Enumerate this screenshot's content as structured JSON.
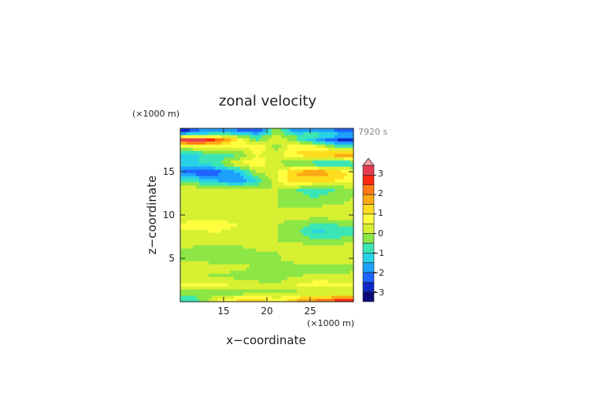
{
  "chart_data": {
    "type": "heatmap",
    "title": "zonal velocity",
    "xlabel": "x−coordinate",
    "ylabel": "z−coordinate",
    "x_unit": "(×1000 m)",
    "y_unit": "(×1000 m)",
    "time_label": "7920 s",
    "xlim": [
      10,
      30
    ],
    "ylim": [
      0,
      20
    ],
    "x_ticks": [
      "15",
      "20",
      "25"
    ],
    "y_ticks": [
      "5",
      "10",
      "15"
    ],
    "colorbar": {
      "range": [
        -3.5,
        3.5
      ],
      "ticks": [
        "3",
        "2",
        "1",
        "0",
        "−1",
        "−2",
        "−3"
      ],
      "levels": [
        -3.5,
        -3.0,
        -2.5,
        -2.0,
        -1.5,
        -1.0,
        -0.5,
        0,
        0.5,
        1.0,
        1.5,
        2.0,
        2.5,
        3.0,
        3.5
      ],
      "colors": [
        "#0a0a78",
        "#1028c8",
        "#1e64ff",
        "#1ea0ff",
        "#28d2e6",
        "#3ce6b4",
        "#8ce646",
        "#d7f032",
        "#ffff40",
        "#ffdc1e",
        "#ffaa14",
        "#ff7814",
        "#ff2814",
        "#e63c50",
        "#f5a0a8"
      ]
    },
    "layers": [
      {
        "z": 19.7,
        "vals": [
          -3.0,
          -2.0,
          -1.5,
          -2.0,
          -2.5,
          0,
          -2.0,
          -1.5,
          -2.0,
          -2.5
        ]
      },
      {
        "z": 19.3,
        "vals": [
          -1.0,
          -0.5,
          -0.5,
          -0.5,
          -1.0,
          0,
          -0.5,
          -0.5,
          -1.0,
          -1.5
        ]
      },
      {
        "z": 18.7,
        "vals": [
          3.2,
          3.5,
          2.5,
          1.0,
          -0.5,
          0.5,
          -0.5,
          -1.5,
          -2.5,
          -3.0
        ]
      },
      {
        "z": 18.0,
        "vals": [
          0.5,
          0.8,
          0.5,
          0.5,
          1.0,
          -0.3,
          1.0,
          0.5,
          -0.5,
          -1.0
        ]
      },
      {
        "z": 17.0,
        "vals": [
          -1.5,
          -1.0,
          -0.8,
          -0.5,
          0.5,
          0.3,
          1.0,
          1.5,
          1.8,
          2.2
        ]
      },
      {
        "z": 16.0,
        "vals": [
          -1.2,
          -1.0,
          -0.5,
          0.5,
          1.0,
          0,
          -0.5,
          -1.0,
          -1.5,
          -1.0
        ]
      },
      {
        "z": 15.0,
        "vals": [
          -2.0,
          -2.5,
          -2.2,
          -1.5,
          0,
          0.5,
          1.5,
          2.0,
          1.5,
          0.8
        ]
      },
      {
        "z": 14.0,
        "vals": [
          -0.5,
          -1.0,
          -1.5,
          -2.0,
          -1.0,
          0.5,
          1.5,
          1.2,
          1.0,
          0.8
        ]
      },
      {
        "z": 13.0,
        "vals": [
          0.5,
          0.3,
          0.2,
          0.3,
          0,
          0,
          -0.5,
          -0.8,
          -0.5,
          -0.2
        ]
      },
      {
        "z": 12.0,
        "vals": [
          0.2,
          0.3,
          0.2,
          0.1,
          0.1,
          0,
          -0.3,
          -0.5,
          -0.3,
          0
        ]
      },
      {
        "z": 11.0,
        "vals": [
          0.2,
          0.3,
          0.2,
          0.2,
          0.1,
          0,
          0,
          0,
          0.1,
          0.2
        ]
      },
      {
        "z": 10.0,
        "vals": [
          0.3,
          0.3,
          0.3,
          0.2,
          0.2,
          0.2,
          0.2,
          0.3,
          0.3,
          0.3
        ]
      },
      {
        "z": 9.0,
        "vals": [
          0.5,
          0.8,
          0.7,
          0.5,
          0.3,
          0,
          -0.2,
          -0.6,
          -0.5,
          -0.3
        ]
      },
      {
        "z": 8.0,
        "vals": [
          0.5,
          0.4,
          0.5,
          0.3,
          0.3,
          0,
          -0.3,
          -1.2,
          -1.0,
          -0.8
        ]
      },
      {
        "z": 7.0,
        "vals": [
          0.3,
          0.2,
          0.3,
          0.3,
          0.2,
          0,
          0,
          -0.2,
          -0.2,
          0
        ]
      },
      {
        "z": 6.0,
        "vals": [
          0,
          -0.2,
          -0.3,
          -0.2,
          0,
          0,
          0.2,
          0.3,
          0.3,
          0.2
        ]
      },
      {
        "z": 5.0,
        "vals": [
          -0.2,
          -0.4,
          -0.4,
          -0.3,
          -0.1,
          -0.1,
          0.3,
          0.5,
          0.5,
          0.4
        ]
      },
      {
        "z": 4.0,
        "vals": [
          0.5,
          0.6,
          0.3,
          0.1,
          0,
          -0.2,
          -0.3,
          -0.4,
          -0.3,
          -0.2
        ]
      },
      {
        "z": 3.0,
        "vals": [
          0.1,
          0,
          -0.1,
          -0.2,
          -0.3,
          -0.3,
          0,
          0.1,
          0.1,
          0.2
        ]
      },
      {
        "z": 2.0,
        "vals": [
          0.5,
          0.7,
          0.6,
          0.4,
          0.2,
          0,
          0.5,
          0.8,
          0.7,
          0.6
        ]
      },
      {
        "z": 1.0,
        "vals": [
          -0.2,
          -0.3,
          -0.3,
          -0.2,
          -0.1,
          0,
          -0.2,
          -0.2,
          -0.2,
          -0.1
        ]
      },
      {
        "z": 0.3,
        "vals": [
          -1.0,
          -0.5,
          0.5,
          1.0,
          1.5,
          0.5,
          1.5,
          2.0,
          2.5,
          3.0
        ]
      }
    ]
  }
}
